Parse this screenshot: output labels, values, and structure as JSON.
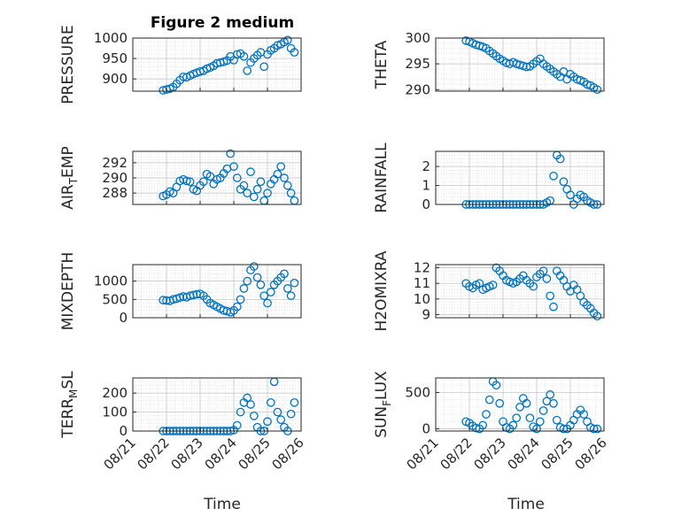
{
  "figure": {
    "title": "Figure 2 medium"
  },
  "colors": {
    "marker": "#0072BD",
    "axis": "#262626",
    "grid": "#d3d3d3"
  },
  "x_tick_labels": [
    "08/21",
    "08/22",
    "08/23",
    "08/24",
    "08/25",
    "08/26"
  ],
  "x_axis_label": "Time",
  "chart_data": [
    {
      "id": "pressure",
      "type": "scatter",
      "ylabel": "PRESSURE",
      "ylim": [
        870,
        1000
      ],
      "yticks": [
        900,
        950,
        1000
      ],
      "xlim": [
        "2017-08-21",
        "2017-08-26"
      ],
      "grid": true,
      "series": [
        {
          "x": [
            21.9,
            22.0,
            22.1,
            22.2,
            22.3,
            22.4,
            22.5,
            22.6,
            22.7,
            22.8,
            22.9,
            23.0,
            23.1,
            23.2,
            23.3,
            23.4,
            23.5,
            23.6,
            23.7,
            23.8,
            23.9,
            24.0,
            24.1,
            24.2,
            24.3,
            24.4,
            24.5,
            24.6,
            24.7,
            24.8,
            24.9,
            25.0,
            25.1,
            25.2,
            25.3,
            25.4,
            25.5,
            25.6,
            25.7,
            25.8
          ],
          "y": [
            872,
            874,
            876,
            880,
            888,
            897,
            905,
            904,
            908,
            912,
            915,
            918,
            920,
            925,
            928,
            932,
            938,
            940,
            942,
            945,
            955,
            946,
            960,
            962,
            955,
            920,
            940,
            950,
            958,
            965,
            930,
            960,
            970,
            975,
            982,
            985,
            990,
            995,
            975,
            965
          ]
        }
      ]
    },
    {
      "id": "theta",
      "type": "scatter",
      "ylabel": "THETA",
      "ylim": [
        289.7,
        300
      ],
      "yticks": [
        290,
        295,
        300
      ],
      "xlim": [
        "2017-08-21",
        "2017-08-26"
      ],
      "grid": true,
      "series": [
        {
          "x": [
            21.9,
            22.0,
            22.1,
            22.2,
            22.3,
            22.4,
            22.5,
            22.6,
            22.7,
            22.8,
            22.9,
            23.0,
            23.1,
            23.2,
            23.3,
            23.4,
            23.5,
            23.6,
            23.7,
            23.8,
            23.9,
            24.0,
            24.1,
            24.2,
            24.3,
            24.4,
            24.5,
            24.6,
            24.7,
            24.8,
            24.9,
            25.0,
            25.1,
            25.2,
            25.3,
            25.4,
            25.5,
            25.6,
            25.7,
            25.8
          ],
          "y": [
            299.5,
            299.3,
            299.0,
            298.7,
            298.5,
            298.3,
            298.0,
            297.5,
            297.0,
            296.5,
            296.0,
            295.6,
            295.2,
            295.0,
            295.3,
            295.0,
            294.8,
            294.6,
            294.4,
            294.5,
            295.0,
            295.5,
            296.0,
            295.0,
            294.5,
            294.0,
            293.5,
            293.0,
            292.5,
            293.5,
            292.0,
            293.0,
            292.5,
            292.0,
            291.8,
            291.5,
            291.0,
            290.8,
            290.4,
            290.0
          ]
        }
      ]
    },
    {
      "id": "air_temp",
      "type": "scatter",
      "ylabel": "AIR_TEMP",
      "ylim": [
        286.5,
        293.5
      ],
      "yticks": [
        288,
        290,
        292
      ],
      "xlim": [
        "2017-08-21",
        "2017-08-26"
      ],
      "grid": true,
      "series": [
        {
          "x": [
            21.9,
            22.0,
            22.1,
            22.2,
            22.3,
            22.4,
            22.5,
            22.6,
            22.7,
            22.8,
            22.9,
            23.0,
            23.1,
            23.2,
            23.3,
            23.4,
            23.5,
            23.6,
            23.7,
            23.8,
            23.9,
            24.0,
            24.1,
            24.2,
            24.3,
            24.4,
            24.5,
            24.6,
            24.7,
            24.8,
            24.9,
            25.0,
            25.1,
            25.2,
            25.3,
            25.4,
            25.5,
            25.6,
            25.7,
            25.8
          ],
          "y": [
            287.6,
            287.8,
            288.2,
            288.0,
            288.8,
            289.6,
            289.8,
            289.6,
            289.5,
            288.5,
            288.3,
            289.0,
            289.5,
            290.5,
            290.2,
            289.2,
            289.8,
            290.0,
            290.6,
            291.2,
            293.2,
            291.5,
            290.0,
            288.5,
            289.0,
            288.0,
            290.8,
            287.5,
            288.5,
            289.5,
            287.0,
            288.0,
            289.2,
            289.8,
            290.5,
            291.5,
            290.0,
            289.0,
            288.0,
            287.0
          ]
        }
      ]
    },
    {
      "id": "rainfall",
      "type": "scatter",
      "ylabel": "RAINFALL",
      "ylim": [
        0,
        2.8
      ],
      "yticks": [
        0,
        1,
        2
      ],
      "xlim": [
        "2017-08-21",
        "2017-08-26"
      ],
      "grid": true,
      "series": [
        {
          "x": [
            21.9,
            22.0,
            22.1,
            22.2,
            22.3,
            22.4,
            22.5,
            22.6,
            22.7,
            22.8,
            22.9,
            23.0,
            23.1,
            23.2,
            23.3,
            23.4,
            23.5,
            23.6,
            23.7,
            23.8,
            23.9,
            24.0,
            24.1,
            24.2,
            24.3,
            24.4,
            24.5,
            24.6,
            24.7,
            24.8,
            24.9,
            25.0,
            25.1,
            25.2,
            25.3,
            25.4,
            25.5,
            25.6,
            25.7,
            25.8
          ],
          "y": [
            0,
            0,
            0,
            0,
            0,
            0,
            0,
            0,
            0,
            0,
            0,
            0,
            0,
            0,
            0,
            0,
            0,
            0,
            0,
            0,
            0,
            0,
            0,
            0,
            0.1,
            0.2,
            1.5,
            2.6,
            2.4,
            1.2,
            0.8,
            0.5,
            0,
            0.3,
            0.5,
            0.4,
            0.2,
            0.1,
            0,
            0
          ]
        }
      ]
    },
    {
      "id": "mixdepth",
      "type": "scatter",
      "ylabel": "MIXDEPTH",
      "ylim": [
        0,
        1450
      ],
      "yticks": [
        0,
        500,
        1000
      ],
      "xlim": [
        "2017-08-21",
        "2017-08-26"
      ],
      "grid": true,
      "series": [
        {
          "x": [
            21.9,
            22.0,
            22.1,
            22.2,
            22.3,
            22.4,
            22.5,
            22.6,
            22.7,
            22.8,
            22.9,
            23.0,
            23.1,
            23.2,
            23.3,
            23.4,
            23.5,
            23.6,
            23.7,
            23.8,
            23.9,
            24.0,
            24.1,
            24.2,
            24.3,
            24.4,
            24.5,
            24.6,
            24.7,
            24.8,
            24.9,
            25.0,
            25.1,
            25.2,
            25.3,
            25.4,
            25.5,
            25.6,
            25.7,
            25.8
          ],
          "y": [
            480,
            470,
            460,
            500,
            520,
            550,
            580,
            560,
            600,
            620,
            640,
            650,
            600,
            500,
            400,
            350,
            300,
            250,
            200,
            180,
            150,
            200,
            300,
            500,
            800,
            1000,
            1300,
            1400,
            1100,
            900,
            600,
            400,
            700,
            900,
            1000,
            1100,
            1200,
            800,
            600,
            950
          ]
        }
      ]
    },
    {
      "id": "h2omixra",
      "type": "scatter",
      "ylabel": "H2OMIXRA",
      "ylim": [
        8.8,
        12.2
      ],
      "yticks": [
        9,
        10,
        11,
        12
      ],
      "xlim": [
        "2017-08-21",
        "2017-08-26"
      ],
      "grid": true,
      "series": [
        {
          "x": [
            21.9,
            22.0,
            22.1,
            22.2,
            22.3,
            22.4,
            22.5,
            22.6,
            22.7,
            22.8,
            22.9,
            23.0,
            23.1,
            23.2,
            23.3,
            23.4,
            23.5,
            23.6,
            23.7,
            23.8,
            23.9,
            24.0,
            24.1,
            24.2,
            24.3,
            24.4,
            24.5,
            24.6,
            24.7,
            24.8,
            24.9,
            25.0,
            25.1,
            25.2,
            25.3,
            25.4,
            25.5,
            25.6,
            25.7,
            25.8
          ],
          "y": [
            11.0,
            10.8,
            10.7,
            10.9,
            11.0,
            10.6,
            10.7,
            10.8,
            10.9,
            12.0,
            11.8,
            11.5,
            11.2,
            11.1,
            11.0,
            11.1,
            11.3,
            11.5,
            11.2,
            11.0,
            10.8,
            11.4,
            11.6,
            11.8,
            11.3,
            10.2,
            9.5,
            11.8,
            11.5,
            11.2,
            10.8,
            10.5,
            10.9,
            10.6,
            10.2,
            9.8,
            9.6,
            9.4,
            9.1,
            8.9
          ]
        }
      ]
    },
    {
      "id": "terr_msl",
      "type": "scatter",
      "ylabel": "TERR_MSL",
      "ylim": [
        0,
        280
      ],
      "yticks": [
        0,
        100,
        200
      ],
      "xlim": [
        "2017-08-21",
        "2017-08-26"
      ],
      "grid": true,
      "series": [
        {
          "x": [
            21.9,
            22.0,
            22.1,
            22.2,
            22.3,
            22.4,
            22.5,
            22.6,
            22.7,
            22.8,
            22.9,
            23.0,
            23.1,
            23.2,
            23.3,
            23.4,
            23.5,
            23.6,
            23.7,
            23.8,
            23.9,
            24.0,
            24.1,
            24.2,
            24.3,
            24.4,
            24.5,
            24.6,
            24.7,
            24.8,
            24.9,
            25.0,
            25.1,
            25.2,
            25.3,
            25.4,
            25.5,
            25.6,
            25.7,
            25.8
          ],
          "y": [
            0,
            0,
            0,
            0,
            0,
            0,
            0,
            0,
            0,
            0,
            0,
            0,
            0,
            0,
            0,
            0,
            0,
            0,
            0,
            0,
            0,
            5,
            30,
            100,
            150,
            175,
            140,
            80,
            20,
            0,
            0,
            50,
            150,
            260,
            100,
            60,
            20,
            0,
            90,
            150
          ]
        }
      ]
    },
    {
      "id": "sun_flux",
      "type": "scatter",
      "ylabel": "SUN_FLUX",
      "ylim": [
        -30,
        700
      ],
      "yticks": [
        0,
        500
      ],
      "xlim": [
        "2017-08-21",
        "2017-08-26"
      ],
      "grid": true,
      "series": [
        {
          "x": [
            21.9,
            22.0,
            22.1,
            22.2,
            22.3,
            22.4,
            22.5,
            22.6,
            22.7,
            22.8,
            22.9,
            23.0,
            23.1,
            23.2,
            23.3,
            23.4,
            23.5,
            23.6,
            23.7,
            23.8,
            23.9,
            24.0,
            24.1,
            24.2,
            24.3,
            24.4,
            24.5,
            24.6,
            24.7,
            24.8,
            24.9,
            25.0,
            25.1,
            25.2,
            25.3,
            25.4,
            25.5,
            25.6,
            25.7,
            25.8
          ],
          "y": [
            100,
            80,
            40,
            10,
            0,
            50,
            200,
            400,
            650,
            600,
            350,
            100,
            20,
            0,
            50,
            150,
            300,
            420,
            350,
            150,
            30,
            0,
            100,
            250,
            380,
            470,
            350,
            120,
            20,
            0,
            0,
            50,
            120,
            200,
            260,
            200,
            100,
            20,
            0,
            0
          ]
        }
      ]
    }
  ]
}
